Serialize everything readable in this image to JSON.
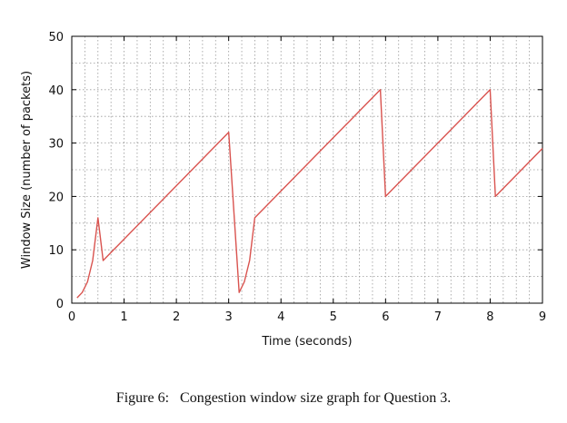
{
  "caption": "Figure 6:   Congestion window size graph for Question 3.",
  "chart_data": {
    "type": "line",
    "title": "",
    "xlabel": "Time (seconds)",
    "ylabel": "Window Size (number of packets)",
    "xlim": [
      0,
      9
    ],
    "ylim": [
      0,
      50
    ],
    "x_ticks": [
      0,
      1,
      2,
      3,
      4,
      5,
      6,
      7,
      8,
      9
    ],
    "x_tick_labels": [
      "0",
      "1",
      "2",
      "3",
      "4",
      "5",
      "6",
      "7",
      "8",
      "9"
    ],
    "y_ticks": [
      0,
      10,
      20,
      30,
      40,
      50
    ],
    "y_tick_labels": [
      "0",
      "10",
      "20",
      "30",
      "40",
      "50"
    ],
    "x_minor_grid_step": 0.25,
    "y_grid_step": 5,
    "grid": true,
    "legend": "none",
    "line_color": "#d9534f",
    "series": [
      {
        "x": [
          0.1,
          0.2,
          0.3,
          0.4,
          0.5,
          0.6,
          3.0,
          3.2,
          3.3,
          3.4,
          3.5,
          5.9,
          6.0,
          8.0,
          8.1,
          9.0
        ],
        "y": [
          1,
          2,
          4,
          8,
          16,
          8,
          32,
          2,
          4,
          8,
          16,
          40,
          20,
          40,
          20,
          29
        ]
      }
    ]
  }
}
